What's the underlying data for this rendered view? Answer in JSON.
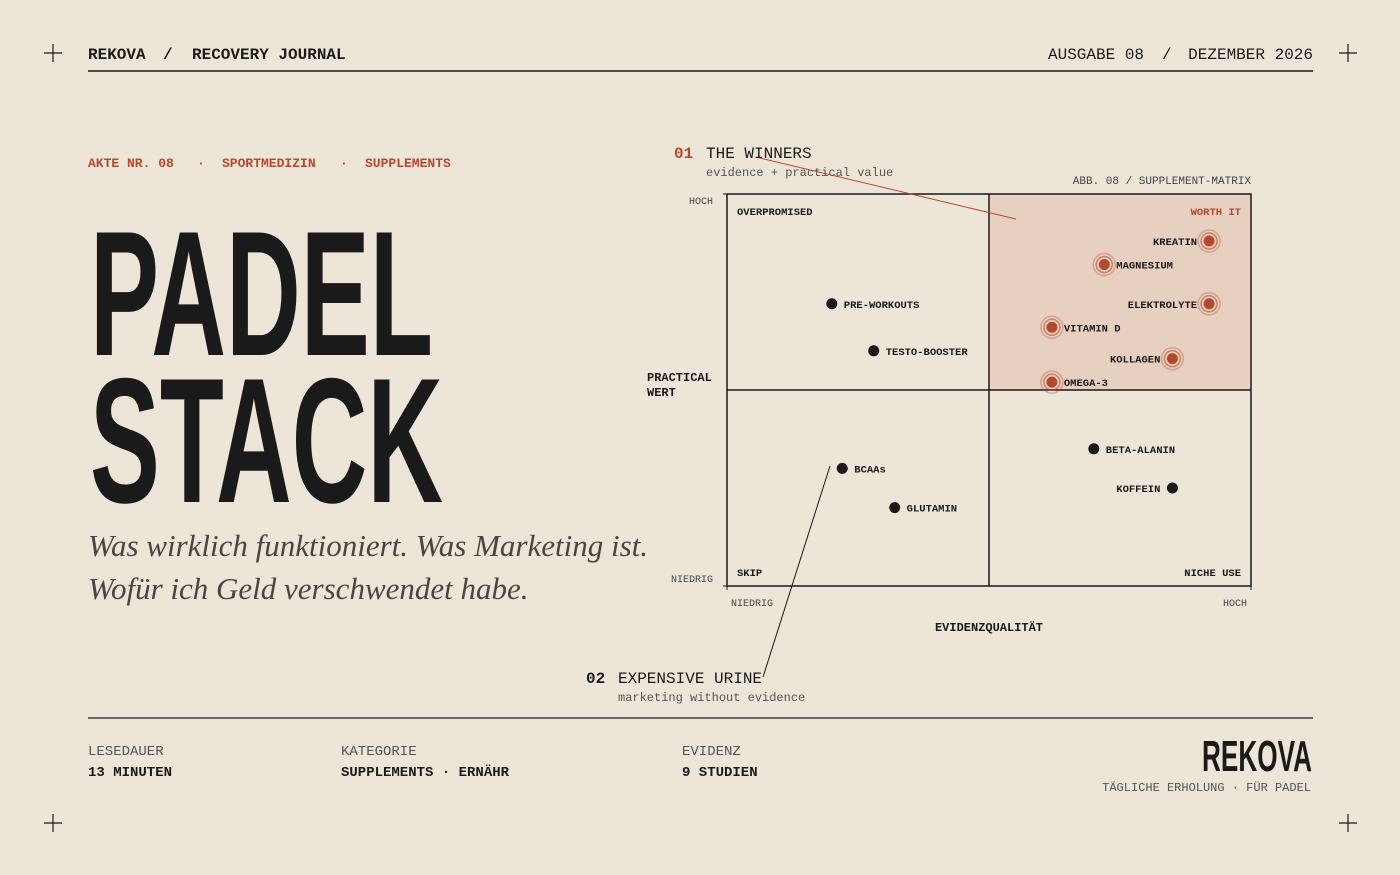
{
  "header": {
    "brand": "REKOVA",
    "sep": "/",
    "journal": "RECOVERY JOURNAL",
    "issue": "AUSGABE 08",
    "sep2": "/",
    "date": "DEZEMBER 2026"
  },
  "tags": [
    "AKTE NR. 08",
    "·",
    "SPORTMEDIZIN",
    "·",
    "SUPPLEMENTS"
  ],
  "title": [
    "PADEL",
    "STACK"
  ],
  "subtitle": [
    "Was wirklich funktioniert. Was Marketing ist.",
    "Wofür ich Geld verschwendet habe."
  ],
  "footer": {
    "items": [
      {
        "label": "LESEDAUER",
        "value": "13 MINUTEN"
      },
      {
        "label": "KATEGORIE",
        "value": "SUPPLEMENTS · ERNÄHR"
      },
      {
        "label": "EVIDENZ",
        "value": "9 STUDIEN"
      }
    ],
    "brand": "REKOVA",
    "tagline": "TÄGLICHE ERHOLUNG · FÜR PADEL"
  },
  "chart_data": {
    "type": "scatter",
    "caption": "ABB. 08 / SUPPLEMENT-MATRIX",
    "x_label": "EVIDENZQUALITÄT",
    "y_label": [
      "PRACTICAL",
      "WERT"
    ],
    "xlim": [
      0,
      10
    ],
    "ylim": [
      0,
      10
    ],
    "xticks": [
      {
        "value": 0,
        "label": "NIEDRIG"
      },
      {
        "value": 10,
        "label": "HOCH"
      }
    ],
    "yticks": [
      {
        "value": 0,
        "label": "NIEDRIG"
      },
      {
        "value": 10,
        "label": "HOCH"
      }
    ],
    "quadrants": [
      "OVERPROMISED",
      "WORTH IT",
      "SKIP",
      "NICHE USE"
    ],
    "color": "#1a1a1a",
    "annotations": [
      {
        "number": "01",
        "title": "THE WINNERS",
        "text": "evidence + practical value"
      },
      {
        "number": "02",
        "title": "EXPENSIVE URINE",
        "text": "marketing without evidence"
      }
    ],
    "points": [
      {
        "label": "KREATIN",
        "x": 9.2,
        "y": 8.8,
        "color": "#b5492e"
      },
      {
        "label": "MAGNESIUM",
        "x": 7.2,
        "y": 8.2,
        "color": "#b5492e"
      },
      {
        "label": "ELEKTROLYTE",
        "x": 9.2,
        "y": 7.2,
        "color": "#b5492e"
      },
      {
        "label": "VITAMIN D",
        "x": 6.2,
        "y": 6.6,
        "color": "#b5492e"
      },
      {
        "label": "KOLLAGEN",
        "x": 8.5,
        "y": 5.8,
        "color": "#b5492e"
      },
      {
        "label": "OMEGA-3",
        "x": 6.2,
        "y": 5.2,
        "color": "#b5492e"
      },
      {
        "label": "PRE-WORKOUTS",
        "x": 2.0,
        "y": 7.2,
        "color": "#1a1a1a"
      },
      {
        "label": "TESTO-BOOSTER",
        "x": 2.8,
        "y": 6.0,
        "color": "#1a1a1a"
      },
      {
        "label": "BCAAs",
        "x": 2.2,
        "y": 3.0,
        "color": "#1a1a1a"
      },
      {
        "label": "GLUTAMIN",
        "x": 3.2,
        "y": 2.0,
        "color": "#1a1a1a"
      },
      {
        "label": "BETA-ALANIN",
        "x": 7.0,
        "y": 3.5,
        "color": "#1a1a1a"
      },
      {
        "label": "KOFFEIN",
        "x": 8.5,
        "y": 2.5,
        "color": "#1a1a1a"
      }
    ]
  }
}
